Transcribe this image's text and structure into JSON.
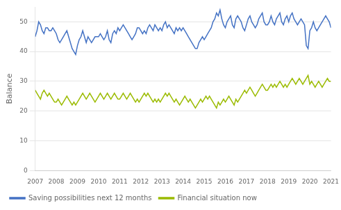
{
  "chart_data": {
    "type": "line",
    "ylabel": "Balance",
    "x": [
      2007,
      2007.083333,
      2007.166667,
      2007.25,
      2007.333333,
      2007.416667,
      2007.5,
      2007.583333,
      2007.666667,
      2007.75,
      2007.833333,
      2007.916667,
      2008,
      2008.083333,
      2008.166667,
      2008.25,
      2008.333333,
      2008.416667,
      2008.5,
      2008.583333,
      2008.666667,
      2008.75,
      2008.833333,
      2008.916667,
      2009,
      2009.083333,
      2009.166667,
      2009.25,
      2009.333333,
      2009.416667,
      2009.5,
      2009.583333,
      2009.666667,
      2009.75,
      2009.833333,
      2009.916667,
      2010,
      2010.083333,
      2010.166667,
      2010.25,
      2010.333333,
      2010.416667,
      2010.5,
      2010.583333,
      2010.666667,
      2010.75,
      2010.833333,
      2010.916667,
      2011,
      2011.083333,
      2011.166667,
      2011.25,
      2011.333333,
      2011.416667,
      2011.5,
      2011.583333,
      2011.666667,
      2011.75,
      2011.833333,
      2011.916667,
      2012,
      2012.083333,
      2012.166667,
      2012.25,
      2012.333333,
      2012.416667,
      2012.5,
      2012.583333,
      2012.666667,
      2012.75,
      2012.833333,
      2012.916667,
      2013,
      2013.083333,
      2013.166667,
      2013.25,
      2013.333333,
      2013.416667,
      2013.5,
      2013.583333,
      2013.666667,
      2013.75,
      2013.833333,
      2013.916667,
      2014,
      2014.083333,
      2014.166667,
      2014.25,
      2014.333333,
      2014.416667,
      2014.5,
      2014.583333,
      2014.666667,
      2014.75,
      2014.833333,
      2014.916667,
      2015,
      2015.083333,
      2015.166667,
      2015.25,
      2015.333333,
      2015.416667,
      2015.5,
      2015.583333,
      2015.666667,
      2015.75,
      2015.833333,
      2015.916667,
      2016,
      2016.083333,
      2016.166667,
      2016.25,
      2016.333333,
      2016.416667,
      2016.5,
      2016.583333,
      2016.666667,
      2016.75,
      2016.833333,
      2016.916667,
      2017,
      2017.083333,
      2017.166667,
      2017.25,
      2017.333333,
      2017.416667,
      2017.5,
      2017.583333,
      2017.666667,
      2017.75,
      2017.833333,
      2017.916667,
      2018,
      2018.083333,
      2018.166667,
      2018.25,
      2018.333333,
      2018.416667,
      2018.5,
      2018.583333,
      2018.666667,
      2018.75,
      2018.833333,
      2018.916667,
      2019,
      2019.083333,
      2019.166667,
      2019.25,
      2019.333333,
      2019.416667,
      2019.5,
      2019.583333,
      2019.666667,
      2019.75,
      2019.833333,
      2019.916667,
      2020,
      2020.083333,
      2020.166667,
      2020.25,
      2020.333333,
      2020.416667,
      2020.5,
      2020.583333,
      2020.666667,
      2020.75,
      2020.833333,
      2020.916667,
      2021
    ],
    "series": [
      {
        "name": "Saving possibilities next 12 months",
        "color": "#4472C4",
        "values": [
          45,
          47,
          50,
          49,
          47,
          46,
          48,
          48,
          47,
          47,
          48,
          47,
          46,
          44,
          43,
          44,
          45,
          46,
          47,
          45,
          43,
          41,
          40,
          39,
          42,
          44,
          45,
          47,
          45,
          43,
          45,
          44,
          43,
          44,
          45,
          45,
          45,
          46,
          45,
          44,
          45,
          47,
          44,
          43,
          46,
          47,
          46,
          48,
          47,
          48,
          49,
          48,
          47,
          46,
          45,
          44,
          45,
          46,
          48,
          48,
          47,
          46,
          47,
          46,
          48,
          49,
          48,
          47,
          49,
          48,
          47,
          48,
          47,
          49,
          50,
          48,
          49,
          48,
          47,
          46,
          48,
          47,
          48,
          47,
          48,
          47,
          46,
          45,
          44,
          43,
          42,
          41,
          41,
          43,
          44,
          45,
          44,
          45,
          46,
          47,
          48,
          50,
          51,
          53,
          52,
          54,
          51,
          49,
          48,
          50,
          51,
          52,
          49,
          48,
          51,
          52,
          51,
          50,
          48,
          47,
          49,
          51,
          52,
          50,
          49,
          48,
          49,
          51,
          52,
          53,
          50,
          49,
          49,
          50,
          52,
          50,
          49,
          51,
          52,
          53,
          50,
          49,
          51,
          52,
          50,
          52,
          53,
          51,
          50,
          49,
          50,
          51,
          50,
          49,
          42,
          41,
          47,
          48,
          50,
          48,
          47,
          48,
          49,
          50,
          51,
          52,
          51,
          50,
          48
        ]
      },
      {
        "name": "Financial situation now",
        "color": "#9BBB00",
        "values": [
          27,
          26,
          25,
          24,
          26,
          27,
          26,
          25,
          26,
          25,
          24,
          23,
          23,
          24,
          23,
          22,
          23,
          24,
          25,
          24,
          23,
          22,
          23,
          22,
          23,
          24,
          25,
          26,
          25,
          24,
          25,
          26,
          25,
          24,
          23,
          24,
          25,
          26,
          25,
          24,
          25,
          26,
          25,
          24,
          25,
          26,
          25,
          24,
          24,
          25,
          26,
          25,
          24,
          25,
          26,
          25,
          24,
          23,
          24,
          23,
          24,
          25,
          26,
          25,
          26,
          25,
          24,
          23,
          24,
          23,
          24,
          23,
          24,
          25,
          26,
          25,
          26,
          25,
          24,
          23,
          24,
          23,
          22,
          23,
          24,
          25,
          24,
          23,
          24,
          23,
          22,
          21,
          22,
          23,
          24,
          23,
          24,
          25,
          24,
          25,
          24,
          23,
          22,
          21,
          23,
          22,
          23,
          24,
          23,
          24,
          25,
          24,
          23,
          22,
          24,
          23,
          24,
          25,
          26,
          27,
          26,
          27,
          28,
          27,
          26,
          25,
          26,
          27,
          28,
          29,
          28,
          27,
          27,
          28,
          29,
          28,
          29,
          28,
          29,
          30,
          29,
          28,
          29,
          28,
          29,
          30,
          31,
          30,
          29,
          30,
          31,
          30,
          29,
          30,
          31,
          32,
          29,
          30,
          29,
          28,
          29,
          30,
          29,
          28,
          29,
          30,
          31,
          30,
          30
        ]
      }
    ],
    "xlim": [
      2007,
      2021
    ],
    "ylim": [
      0,
      55
    ],
    "xticks": [
      2007,
      2008,
      2009,
      2010,
      2011,
      2012,
      2013,
      2014,
      2015,
      2016,
      2017,
      2018,
      2019,
      2020,
      2021
    ],
    "yticks": [
      0,
      10,
      20,
      30,
      40,
      50
    ],
    "grid": true,
    "legend": "lower left"
  }
}
